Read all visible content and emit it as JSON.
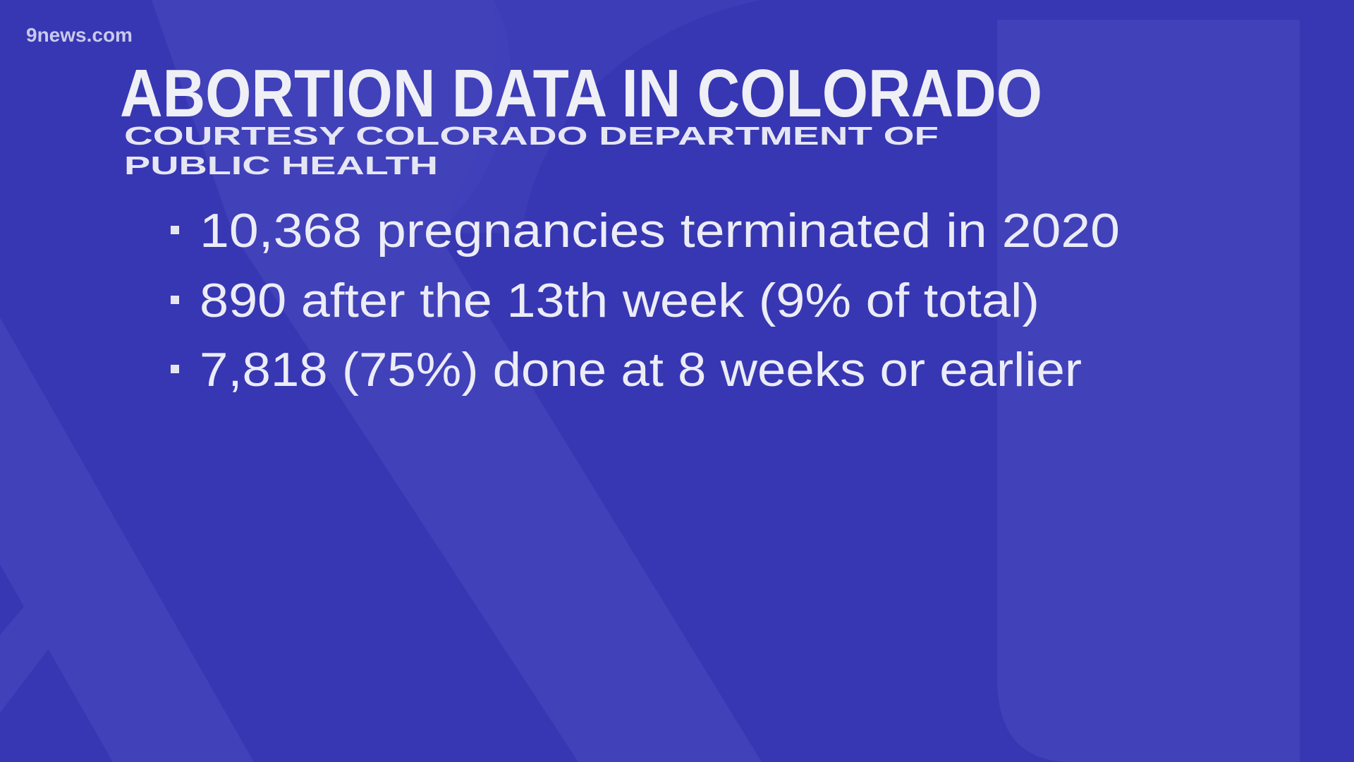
{
  "brand": "9news.com",
  "title": "ABORTION DATA IN COLORADO",
  "subtitle_lines": [
    "COURTESY COLORADO DEPARTMENT OF",
    "PUBLIC HEALTH"
  ],
  "bullets": [
    "10,368 pregnancies terminated in 2020",
    "890 after the 13th week (9% of total)",
    "7,818 (75%) done at 8 weeks or earlier"
  ]
}
